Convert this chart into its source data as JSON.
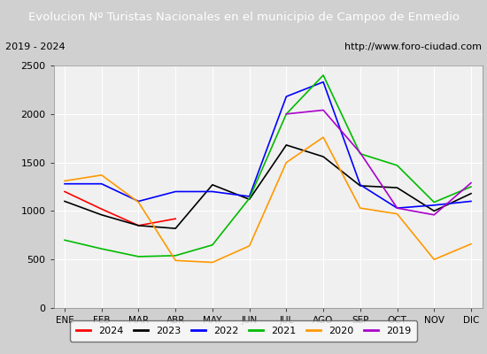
{
  "title": "Evolucion Nº Turistas Nacionales en el municipio de Campoo de Enmedio",
  "subtitle_left": "2019 - 2024",
  "subtitle_right": "http://www.foro-ciudad.com",
  "x_labels": [
    "ENE",
    "FEB",
    "MAR",
    "ABR",
    "MAY",
    "JUN",
    "JUL",
    "AGO",
    "SEP",
    "OCT",
    "NOV",
    "DIC"
  ],
  "ylim": [
    0,
    2500
  ],
  "yticks": [
    0,
    500,
    1000,
    1500,
    2000,
    2500
  ],
  "series": {
    "2024": {
      "color": "#ff0000",
      "data": [
        1200,
        1020,
        850,
        920,
        null,
        null,
        null,
        null,
        null,
        null,
        null,
        null
      ]
    },
    "2023": {
      "color": "#000000",
      "data": [
        1100,
        960,
        850,
        820,
        1270,
        1120,
        1680,
        1560,
        1260,
        1240,
        1000,
        1180
      ]
    },
    "2022": {
      "color": "#0000ff",
      "data": [
        1280,
        1280,
        1100,
        1200,
        1200,
        1150,
        2180,
        2330,
        1270,
        1030,
        1060,
        1100
      ]
    },
    "2021": {
      "color": "#00bb00",
      "data": [
        700,
        610,
        530,
        540,
        650,
        1130,
        2000,
        2400,
        1590,
        1470,
        1090,
        1250
      ]
    },
    "2020": {
      "color": "#ff9900",
      "data": [
        1310,
        1370,
        1090,
        490,
        470,
        640,
        1500,
        1760,
        1030,
        970,
        500,
        660
      ]
    },
    "2019": {
      "color": "#aa00cc",
      "data": [
        null,
        null,
        null,
        null,
        null,
        null,
        2000,
        2040,
        1600,
        1030,
        960,
        1290
      ]
    }
  },
  "title_bg_color": "#4472c4",
  "title_text_color": "#ffffff",
  "plot_bg_color": "#f0f0f0",
  "fig_bg_color": "#d0d0d0",
  "grid_color": "#ffffff",
  "legend_order": [
    "2024",
    "2023",
    "2022",
    "2021",
    "2020",
    "2019"
  ]
}
